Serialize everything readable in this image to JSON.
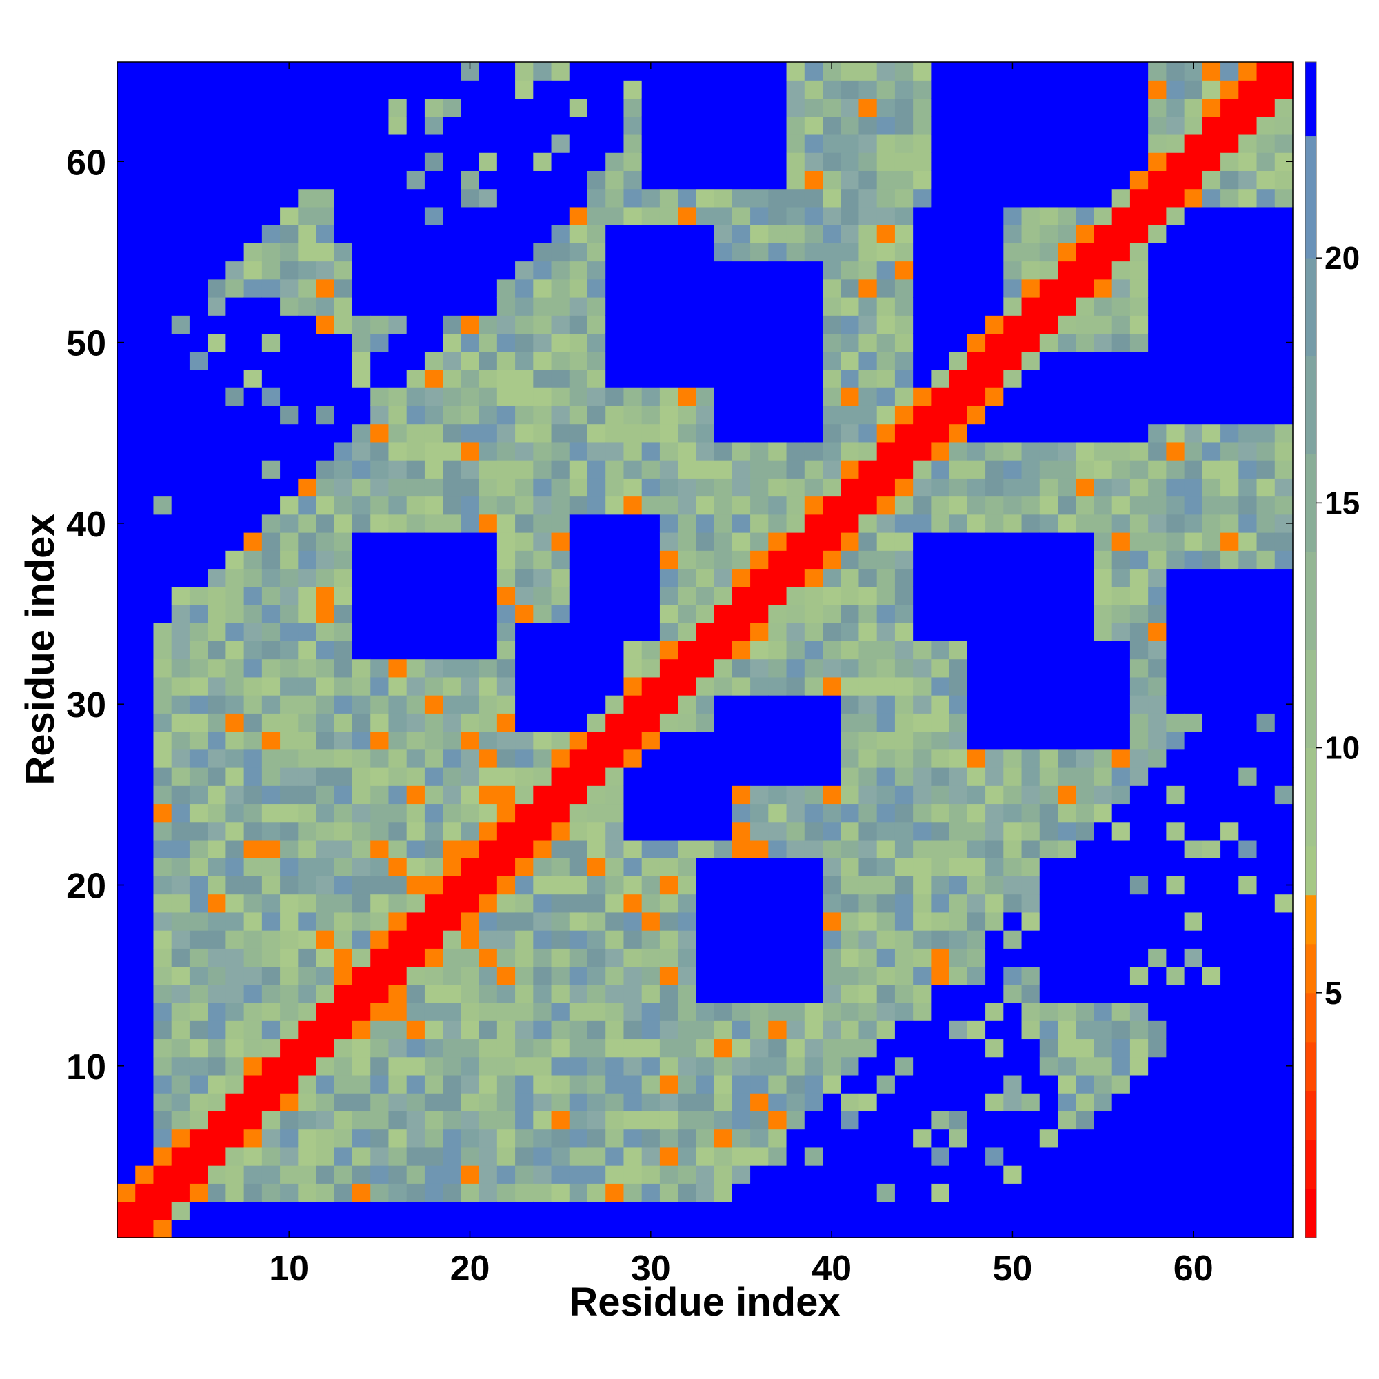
{
  "chart_data": {
    "type": "heatmap",
    "title": "",
    "xlabel": "Residue index",
    "ylabel": "Residue index",
    "n": 65,
    "xlim": [
      0.5,
      65.5
    ],
    "ylim": [
      0.5,
      65.5
    ],
    "x_ticks": [
      10,
      20,
      30,
      40,
      50,
      60
    ],
    "y_ticks": [
      10,
      20,
      30,
      40,
      50,
      60
    ],
    "colorbar": {
      "ticks": [
        5,
        10,
        15,
        20
      ],
      "range": [
        0,
        24
      ],
      "bands": [
        {
          "from": 0,
          "to": 1,
          "color": "#ff0000"
        },
        {
          "from": 1,
          "to": 2,
          "color": "#ff1500"
        },
        {
          "from": 2,
          "to": 3,
          "color": "#ff3000"
        },
        {
          "from": 3,
          "to": 4,
          "color": "#ff4a00"
        },
        {
          "from": 4,
          "to": 5,
          "color": "#ff6000"
        },
        {
          "from": 5,
          "to": 6,
          "color": "#ff7800"
        },
        {
          "from": 6,
          "to": 7,
          "color": "#ff9000"
        },
        {
          "from": 7,
          "to": 8,
          "color": "#a6c886"
        },
        {
          "from": 8,
          "to": 10,
          "color": "#a2c48c"
        },
        {
          "from": 10,
          "to": 12,
          "color": "#9cbe90"
        },
        {
          "from": 12,
          "to": 14,
          "color": "#94b694"
        },
        {
          "from": 14,
          "to": 16,
          "color": "#8aae98"
        },
        {
          "from": 16,
          "to": 18,
          "color": "#80a4a0"
        },
        {
          "from": 18,
          "to": 20,
          "color": "#769ca8"
        },
        {
          "from": 20,
          "to": 22.5,
          "color": "#6a92b8"
        },
        {
          "from": 22.5,
          "to": 24,
          "color": "#0000ff"
        }
      ]
    },
    "colors": {
      "far": "#0000ff",
      "diagonal": "#ff0000",
      "contact": "#ff8000",
      "mid": "#9fc18c",
      "outer": "#7a9fb2",
      "edge": "#6a92c0"
    }
  }
}
